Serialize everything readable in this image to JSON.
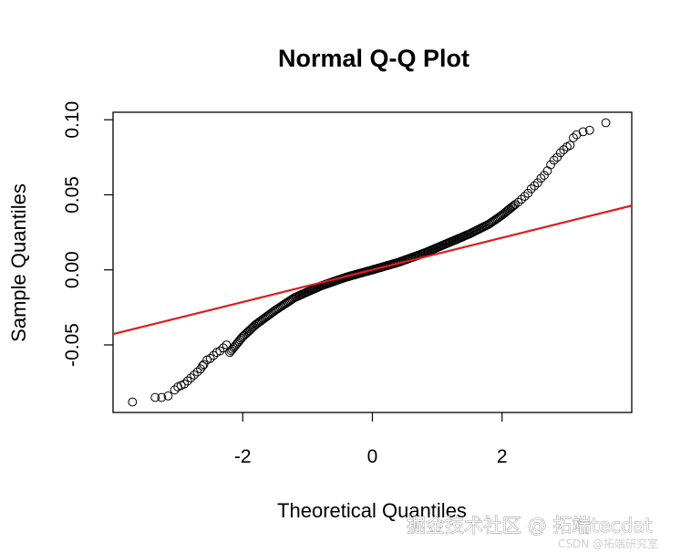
{
  "chart_data": {
    "type": "scatter",
    "title": "Normal Q-Q Plot",
    "xlabel": "Theoretical Quantiles",
    "ylabel": "Sample Quantiles",
    "xlim": [
      -4.0,
      4.0
    ],
    "ylim": [
      -0.095,
      0.105
    ],
    "xticks": [
      -2,
      0,
      2
    ],
    "xtick_labels": [
      "-2",
      "0",
      "2"
    ],
    "yticks": [
      -0.05,
      0.0,
      0.05,
      0.1
    ],
    "ytick_labels": [
      "-0.05",
      "0.00",
      "0.05",
      "0.10"
    ],
    "grid": false,
    "legend": "none",
    "point_color": "#000000",
    "line_color": "#e31a1c",
    "qq_line": {
      "slope": 0.0107,
      "intercept": 0.0
    },
    "profile": {
      "x": [
        -2.2,
        -2.0,
        -1.8,
        -1.5,
        -1.2,
        -0.8,
        -0.4,
        0.0,
        0.4,
        0.8,
        1.2,
        1.5,
        1.8,
        2.0,
        2.2
      ],
      "y": [
        -0.055,
        -0.0445,
        -0.0365,
        -0.027,
        -0.0185,
        -0.0108,
        -0.0048,
        0.0,
        0.005,
        0.0112,
        0.0185,
        0.024,
        0.0305,
        0.0365,
        0.0435
      ]
    },
    "tail_points": {
      "x": [
        -3.7,
        -3.35,
        -3.25,
        -3.15,
        -3.05,
        -3.0,
        -2.95,
        -2.9,
        -2.85,
        -2.8,
        -2.75,
        -2.7,
        -2.65,
        -2.62,
        -2.6,
        -2.55,
        -2.5,
        -2.45,
        -2.4,
        -2.35,
        -2.3,
        -2.25,
        2.25,
        2.3,
        2.35,
        2.4,
        2.45,
        2.5,
        2.55,
        2.6,
        2.65,
        2.7,
        2.75,
        2.8,
        2.85,
        2.9,
        2.95,
        3.0,
        3.05,
        3.1,
        3.15,
        3.25,
        3.35,
        3.6
      ],
      "y": [
        -0.088,
        -0.085,
        -0.085,
        -0.084,
        -0.08,
        -0.078,
        -0.077,
        -0.076,
        -0.074,
        -0.072,
        -0.07,
        -0.068,
        -0.066,
        -0.064,
        -0.063,
        -0.06,
        -0.059,
        -0.057,
        -0.055,
        -0.054,
        -0.052,
        -0.05,
        0.045,
        0.047,
        0.049,
        0.051,
        0.054,
        0.056,
        0.058,
        0.061,
        0.063,
        0.066,
        0.07,
        0.073,
        0.075,
        0.078,
        0.08,
        0.082,
        0.083,
        0.088,
        0.09,
        0.092,
        0.093,
        0.098
      ]
    }
  },
  "watermark": {
    "main": "掘金技术社区 @ 拓端tecdat",
    "sub": "CSDN @拓端研究室"
  }
}
